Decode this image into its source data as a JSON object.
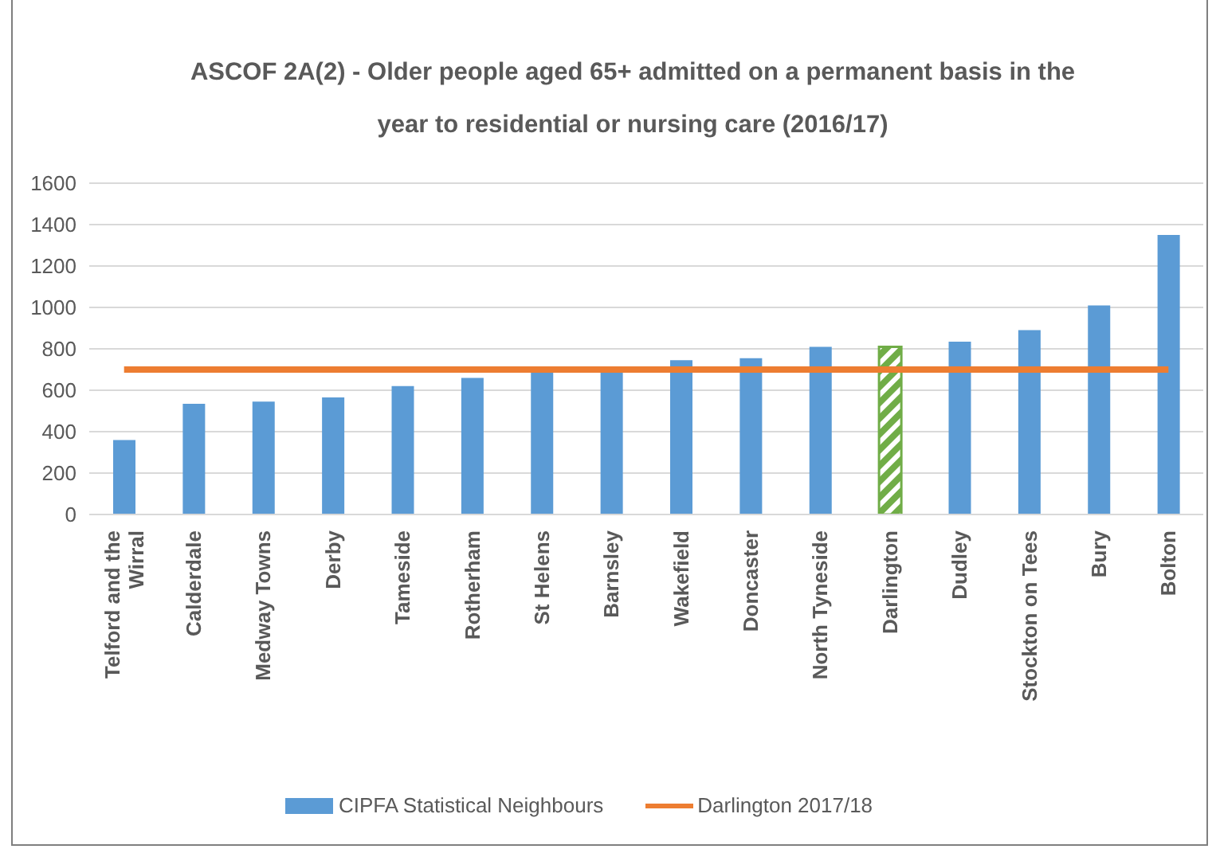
{
  "chart_data": {
    "type": "bar",
    "title": "ASCOF 2A(2) - Older people aged 65+ admitted on a permanent basis in the year to residential or nursing care (2016/17)",
    "categories": [
      "Telford and the Wirral",
      "Calderdale",
      "Medway Towns",
      "Derby",
      "Tameside",
      "Rotherham",
      "St Helens",
      "Barnsley",
      "Wakefield",
      "Doncaster",
      "North Tyneside",
      "Darlington",
      "Dudley",
      "Stockton on Tees",
      "Bury",
      "Bolton"
    ],
    "series": [
      {
        "name": "CIPFA Statistical Neighbours",
        "type": "bar",
        "color": "#5b9bd5",
        "colors": [
          "#5b9bd5",
          "#5b9bd5",
          "#5b9bd5",
          "#5b9bd5",
          "#5b9bd5",
          "#5b9bd5",
          "#5b9bd5",
          "#5b9bd5",
          "#5b9bd5",
          "#5b9bd5",
          "#5b9bd5",
          "#70ad47",
          "#5b9bd5",
          "#5b9bd5",
          "#5b9bd5",
          "#5b9bd5"
        ],
        "values": [
          360,
          535,
          545,
          565,
          620,
          660,
          690,
          690,
          745,
          755,
          810,
          810,
          835,
          890,
          1010,
          1350
        ]
      },
      {
        "name": "Darlington 2017/18",
        "type": "line",
        "color": "#ed7d31",
        "values": [
          700,
          700,
          700,
          700,
          700,
          700,
          700,
          700,
          700,
          700,
          700,
          700,
          700,
          700,
          700,
          700
        ]
      }
    ],
    "ylim": [
      0,
      1600
    ],
    "yticks": [
      0,
      200,
      400,
      600,
      800,
      1000,
      1200,
      1400,
      1600
    ],
    "grid": "y",
    "legend": "bottom",
    "marker": "none"
  }
}
